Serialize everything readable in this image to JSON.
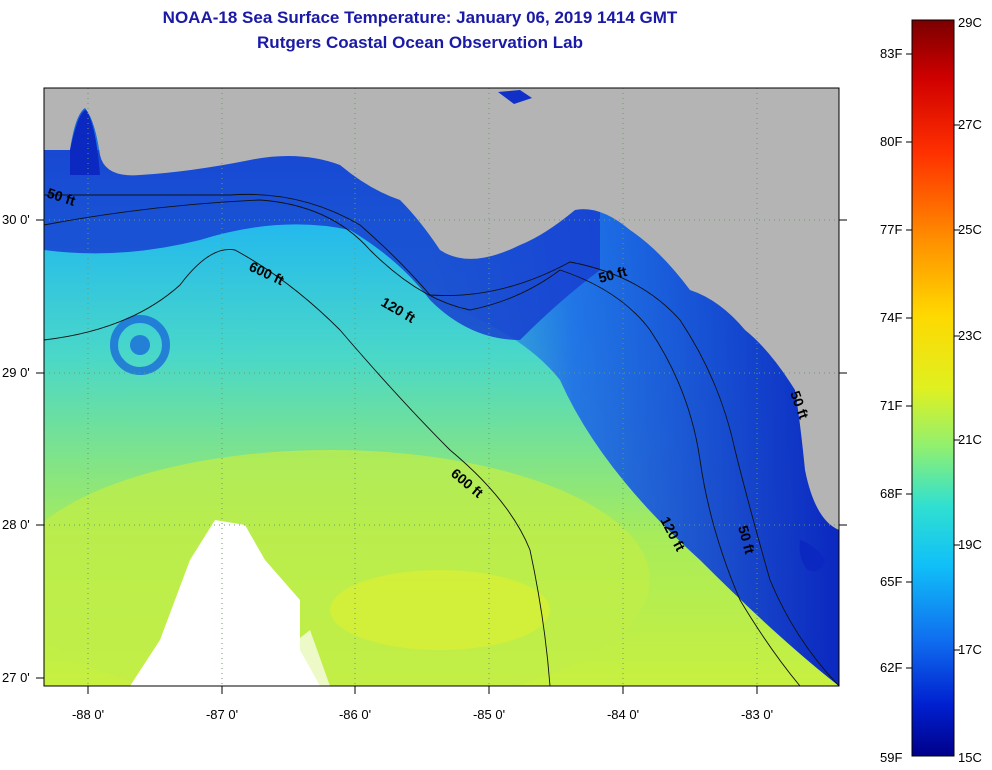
{
  "title": "NOAA-18 Sea Surface Temperature:  January 06, 2019 1414 GMT",
  "subtitle": "Rutgers Coastal Ocean Observation Lab",
  "lat_ticks": [
    "30 0'",
    "29 0'",
    "28 0'",
    "27 0'"
  ],
  "lon_ticks": [
    "-88 0'",
    "-87 0'",
    "-86 0'",
    "-85 0'",
    "-84 0'",
    "-83 0'"
  ],
  "contour_labels": [
    "50 ft",
    "600 ft",
    "120 ft",
    "50 ft",
    "600 ft",
    "120 ft",
    "50 ft",
    "50 ft"
  ],
  "colorbar": {
    "fahrenheit": [
      "83F",
      "80F",
      "77F",
      "74F",
      "71F",
      "68F",
      "65F",
      "62F",
      "59F"
    ],
    "celsius": [
      "29C",
      "27C",
      "25C",
      "23C",
      "21C",
      "19C",
      "17C",
      "15C"
    ]
  },
  "colors": {
    "land": "#b4b4b4",
    "title": "#1a1aa6",
    "ocean_cold": "#0a1fb8",
    "ocean_mid": "#18b4f0",
    "ocean_warm": "#b4f046",
    "cloud": "#ffffff"
  }
}
